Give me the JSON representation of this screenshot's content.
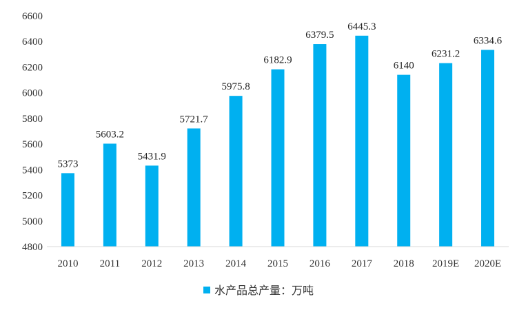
{
  "chart_data": {
    "type": "bar",
    "categories": [
      "2010",
      "2011",
      "2012",
      "2013",
      "2014",
      "2015",
      "2016",
      "2017",
      "2018",
      "2019E",
      "2020E"
    ],
    "series": [
      {
        "name": "水产品总产量：万吨",
        "values": [
          5373,
          5603.2,
          5431.9,
          5721.7,
          5975.8,
          6182.9,
          6379.5,
          6445.3,
          6140,
          6231.2,
          6334.6
        ],
        "labels": [
          "5373",
          "5603.2",
          "5431.9",
          "5721.7",
          "5975.8",
          "6182.9",
          "6379.5",
          "6445.3",
          "6140",
          "6231.2",
          "6334.6"
        ],
        "color": "#00B0F0"
      }
    ],
    "ylim": [
      4800,
      6600
    ],
    "yticks": [
      4800,
      5000,
      5200,
      5400,
      5600,
      5800,
      6000,
      6200,
      6400,
      6600
    ],
    "grid": false,
    "legend_position": "bottom"
  },
  "colors": {
    "bar": "#00B0F0",
    "axis": "#d9d9d9",
    "text": "#333333"
  }
}
